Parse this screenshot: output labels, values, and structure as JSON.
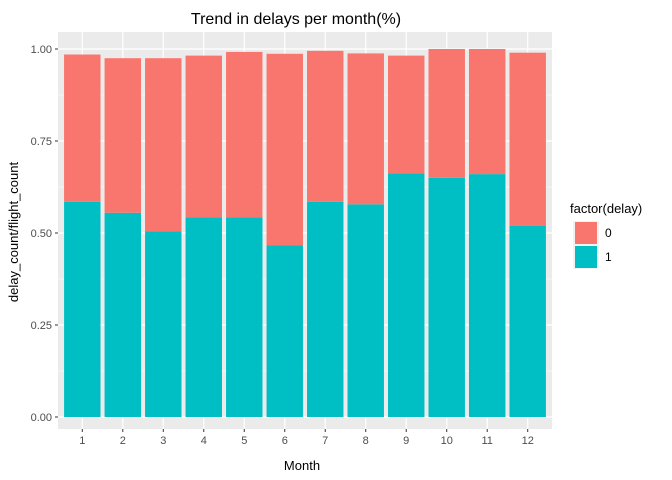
{
  "chart_data": {
    "type": "bar",
    "stacked": true,
    "title": "Trend in delays per month(%)",
    "xlabel": "Month",
    "ylabel": "delay_count/flight_count",
    "categories": [
      "1",
      "2",
      "3",
      "4",
      "5",
      "6",
      "7",
      "8",
      "9",
      "10",
      "11",
      "12"
    ],
    "ylim": [
      0,
      1
    ],
    "yticks": [
      "0.00",
      "0.25",
      "0.50",
      "0.75",
      "1.00"
    ],
    "grid": true,
    "legend": {
      "title": "factor(delay)",
      "position": "right"
    },
    "series": [
      {
        "name": "0",
        "color": "#F8766D",
        "values": [
          0.4,
          0.42,
          0.47,
          0.44,
          0.45,
          0.52,
          0.41,
          0.41,
          0.32,
          0.35,
          0.34,
          0.47
        ]
      },
      {
        "name": "1",
        "color": "#00BFC4",
        "values": [
          0.585,
          0.555,
          0.505,
          0.542,
          0.542,
          0.467,
          0.585,
          0.578,
          0.662,
          0.65,
          0.66,
          0.52
        ]
      }
    ]
  }
}
